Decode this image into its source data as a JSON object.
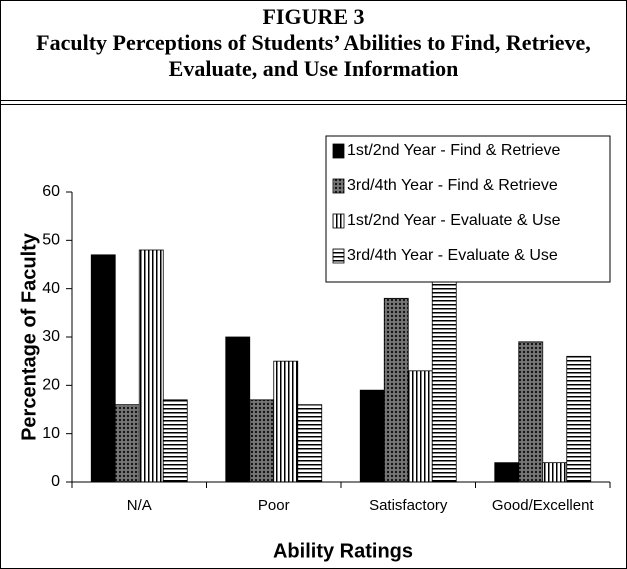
{
  "chart_data": {
    "type": "bar",
    "title": "FIGURE 3",
    "subtitle": "Faculty Perceptions of Students’ Abilities to Find, Retrieve, Evaluate, and Use Information",
    "x_label": "Ability Ratings",
    "y_label": "Percentage of Faculty",
    "categories": [
      "N/A",
      "Poor",
      "Satisfactory",
      "Good/Excellent"
    ],
    "series": [
      {
        "name": "1st/2nd Year - Find & Retrieve",
        "color": "#000000",
        "pattern": "solid",
        "values": [
          47,
          30,
          19,
          4
        ]
      },
      {
        "name": "3rd/4th Year - Find & Retrieve",
        "color": "#000000",
        "pattern": "crosshatch",
        "values": [
          16,
          17,
          38,
          29
        ]
      },
      {
        "name": "1st/2nd Year - Evaluate & Use",
        "color": "#000000",
        "pattern": "vertical",
        "values": [
          48,
          25,
          23,
          4
        ]
      },
      {
        "name": "3rd/4th Year - Evaluate & Use",
        "color": "#000000",
        "pattern": "horizontal",
        "values": [
          17,
          16,
          42,
          26
        ]
      }
    ],
    "ylim": [
      0,
      60
    ],
    "yticks": [
      0,
      10,
      20,
      30,
      40,
      50,
      60
    ],
    "grid": false,
    "legend": "top-right"
  }
}
